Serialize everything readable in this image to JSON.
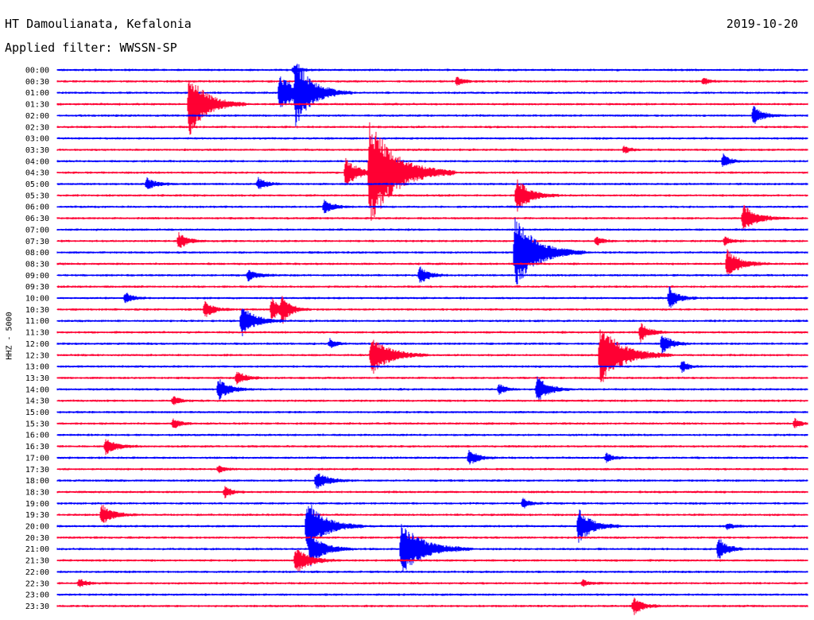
{
  "header": {
    "station": "HT Damoulianata, Kefalonia",
    "date": "2019-10-20",
    "filter": "Applied filter: WWSSN-SP"
  },
  "chart_data": {
    "type": "line",
    "ylabel": "HHZ - 5000",
    "colors": [
      "#0000ff",
      "#ff0033"
    ],
    "x_start": "00:00",
    "x_minutes_per_line": 30,
    "tick_labels": [
      "00:00",
      "00:30",
      "01:00",
      "01:30",
      "02:00",
      "02:30",
      "03:00",
      "03:30",
      "04:00",
      "04:30",
      "05:00",
      "05:30",
      "06:00",
      "06:30",
      "07:00",
      "07:30",
      "08:00",
      "08:30",
      "09:00",
      "09:30",
      "10:00",
      "10:30",
      "11:00",
      "11:30",
      "12:00",
      "12:30",
      "13:00",
      "13:30",
      "14:00",
      "14:30",
      "15:00",
      "15:30",
      "16:00",
      "16:30",
      "17:00",
      "17:30",
      "18:00",
      "18:30",
      "19:00",
      "19:30",
      "20:00",
      "20:30",
      "21:00",
      "21:30",
      "22:00",
      "22:30",
      "23:00",
      "23:30"
    ],
    "events": [
      [
        0,
        370,
        0.4,
        1.5
      ],
      [
        1,
        575,
        0.4,
        1.5
      ],
      [
        1,
        885,
        0.3,
        1.2
      ],
      [
        2,
        352,
        1.6,
        4
      ],
      [
        2,
        372,
        2.4,
        4
      ],
      [
        3,
        238,
        2.8,
        4
      ],
      [
        4,
        948,
        0.8,
        2
      ],
      [
        7,
        785,
        0.3,
        1.5
      ],
      [
        8,
        910,
        0.6,
        1.5
      ],
      [
        9,
        435,
        1.2,
        3
      ],
      [
        9,
        465,
        4.8,
        6
      ],
      [
        10,
        185,
        0.5,
        2
      ],
      [
        10,
        325,
        0.5,
        2
      ],
      [
        11,
        650,
        1.5,
        3
      ],
      [
        12,
        408,
        0.6,
        2
      ],
      [
        13,
        935,
        1.2,
        3
      ],
      [
        15,
        225,
        0.7,
        2
      ],
      [
        15,
        750,
        0.4,
        1.5
      ],
      [
        15,
        912,
        0.4,
        1.5
      ],
      [
        16,
        648,
        3.2,
        5
      ],
      [
        17,
        915,
        1.2,
        3
      ],
      [
        18,
        312,
        0.5,
        2
      ],
      [
        18,
        528,
        0.8,
        2
      ],
      [
        20,
        158,
        0.5,
        1.5
      ],
      [
        20,
        842,
        1.0,
        2
      ],
      [
        21,
        258,
        0.7,
        2
      ],
      [
        21,
        342,
        1.0,
        2
      ],
      [
        21,
        355,
        1.0,
        2
      ],
      [
        22,
        304,
        1.4,
        3
      ],
      [
        23,
        806,
        0.8,
        2
      ],
      [
        24,
        415,
        0.4,
        1.5
      ],
      [
        24,
        833,
        0.9,
        2
      ],
      [
        25,
        467,
        1.8,
        4
      ],
      [
        25,
        755,
        2.7,
        5
      ],
      [
        26,
        858,
        0.5,
        1.5
      ],
      [
        27,
        298,
        0.6,
        2
      ],
      [
        28,
        275,
        0.9,
        2.5
      ],
      [
        28,
        628,
        0.5,
        1.5
      ],
      [
        28,
        676,
        1.2,
        2.5
      ],
      [
        29,
        218,
        0.4,
        1.5
      ],
      [
        31,
        218,
        0.5,
        1.5
      ],
      [
        31,
        1000,
        0.4,
        1.5
      ],
      [
        33,
        133,
        0.7,
        2.5
      ],
      [
        34,
        590,
        0.7,
        2
      ],
      [
        34,
        763,
        0.4,
        1.5
      ],
      [
        35,
        275,
        0.3,
        1.5
      ],
      [
        36,
        398,
        0.8,
        2.5
      ],
      [
        37,
        283,
        0.5,
        1.5
      ],
      [
        38,
        658,
        0.5,
        1.5
      ],
      [
        39,
        128,
        0.9,
        2.5
      ],
      [
        40,
        386,
        2.4,
        4
      ],
      [
        40,
        728,
        1.5,
        3
      ],
      [
        40,
        915,
        0.3,
        1.5
      ],
      [
        42,
        391,
        1.5,
        3
      ],
      [
        42,
        505,
        2.3,
        5
      ],
      [
        42,
        904,
        1.0,
        2
      ],
      [
        43,
        372,
        1.2,
        3
      ],
      [
        45,
        100,
        0.4,
        1.5
      ],
      [
        45,
        733,
        0.3,
        1.5
      ],
      [
        47,
        797,
        0.8,
        2
      ]
    ]
  }
}
